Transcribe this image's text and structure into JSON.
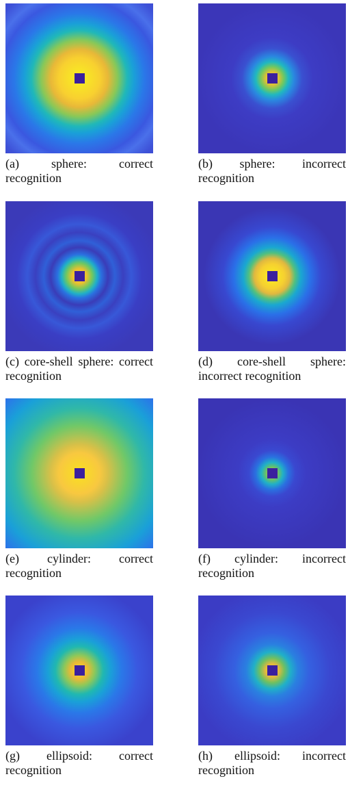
{
  "figure": {
    "panels": [
      {
        "label": "(a)",
        "caption": "sphere: correct recognition"
      },
      {
        "label": "(b)",
        "caption": "sphere: incorrect recognition"
      },
      {
        "label": "(c)",
        "caption": "core-shell sphere: correct recognition"
      },
      {
        "label": "(d)",
        "caption": "core-shell sphere: incorrect recognition"
      },
      {
        "label": "(e)",
        "caption": "cylinder: correct recognition"
      },
      {
        "label": "(f)",
        "caption": "cylinder: incorrect recognition"
      },
      {
        "label": "(g)",
        "caption": "ellipsoid: correct recognition"
      },
      {
        "label": "(h)",
        "caption": "ellipsoid: incorrect recognition"
      }
    ]
  }
}
